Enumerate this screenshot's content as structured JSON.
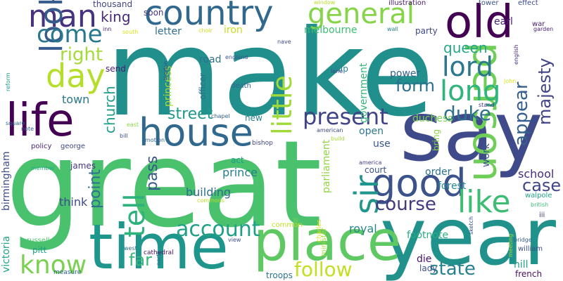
{
  "words": [
    {
      "text": "make",
      "color": "#21908d"
    },
    {
      "text": "great",
      "color": "#4ac16d"
    },
    {
      "text": "say",
      "color": "#3f4a8a"
    },
    {
      "text": "year",
      "color": "#21918c"
    },
    {
      "text": "time",
      "color": "#1f968b"
    },
    {
      "text": "place",
      "color": "#5ec962"
    },
    {
      "text": "house",
      "color": "#31688e"
    },
    {
      "text": "life",
      "color": "#440154"
    },
    {
      "text": "person",
      "color": "#6ece58"
    },
    {
      "text": "country",
      "color": "#31688e"
    },
    {
      "text": "old",
      "color": "#440154"
    },
    {
      "text": "good",
      "color": "#3b528b"
    },
    {
      "text": "man",
      "color": "#46327e"
    },
    {
      "text": "general",
      "color": "#86d549"
    },
    {
      "text": "day",
      "color": "#b5de2b"
    },
    {
      "text": "look",
      "color": "#365c8d"
    },
    {
      "text": "come",
      "color": "#2a788e"
    },
    {
      "text": "little",
      "color": "#a0da39"
    },
    {
      "text": "long",
      "color": "#2fb47c"
    },
    {
      "text": "lord",
      "color": "#2a788e"
    },
    {
      "text": "like",
      "color": "#3dbc74"
    },
    {
      "text": "sir",
      "color": "#1f968b"
    },
    {
      "text": "tell",
      "color": "#2db27d"
    },
    {
      "text": "account",
      "color": "#1fa187"
    },
    {
      "text": "know",
      "color": "#7ad151"
    },
    {
      "text": "present",
      "color": "#404387"
    },
    {
      "text": "course",
      "color": "#443a83"
    },
    {
      "text": "right",
      "color": "#a5db36"
    },
    {
      "text": "follow",
      "color": "#c2df23"
    },
    {
      "text": "state",
      "color": "#26828e"
    },
    {
      "text": "duke",
      "color": "#2c728e"
    },
    {
      "text": "appear",
      "color": "#355f8d"
    },
    {
      "text": "majesty",
      "color": "#414487"
    },
    {
      "text": "form",
      "color": "#2c728e"
    },
    {
      "text": "case",
      "color": "#404688"
    },
    {
      "text": "street",
      "color": "#1f988b"
    },
    {
      "text": "point",
      "color": "#2d718e"
    },
    {
      "text": "pass",
      "color": "#38588c"
    },
    {
      "text": "queen",
      "color": "#22a884"
    },
    {
      "text": "far",
      "color": "#35b779"
    },
    {
      "text": "church",
      "color": "#1f9e89"
    },
    {
      "text": "king",
      "color": "#482878"
    },
    {
      "text": "town",
      "color": "#2a788e"
    },
    {
      "text": "building",
      "color": "#2e6e8e"
    },
    {
      "text": "prince",
      "color": "#277f8e"
    },
    {
      "text": "school",
      "color": "#472d7b"
    },
    {
      "text": "think",
      "color": "#3e4c8a"
    },
    {
      "text": "royal",
      "color": "#25858e"
    },
    {
      "text": "princess",
      "color": "#addc30"
    },
    {
      "text": "iron",
      "color": "#c8e020"
    },
    {
      "text": "melbourne",
      "color": "#3dbc74"
    },
    {
      "text": "earl",
      "color": "#481f70"
    },
    {
      "text": "road",
      "color": "#2e6f8e"
    },
    {
      "text": "letter",
      "color": "#2e6e8e"
    },
    {
      "text": "forest",
      "color": "#23898e"
    },
    {
      "text": "hill",
      "color": "#1e9b8a"
    },
    {
      "text": "footnote",
      "color": "#29af7f"
    },
    {
      "text": "power",
      "color": "#33638d"
    },
    {
      "text": "government",
      "color": "#35b779"
    },
    {
      "text": "parliament",
      "color": "#90d743"
    },
    {
      "text": "duchess",
      "color": "#7ad151"
    },
    {
      "text": "open",
      "color": "#2a768e"
    },
    {
      "text": "use",
      "color": "#39568c"
    },
    {
      "text": "order",
      "color": "#2d718e"
    },
    {
      "text": "court",
      "color": "#3b518b"
    },
    {
      "text": "work",
      "color": "#3a548c"
    },
    {
      "text": "die",
      "color": "#471365"
    },
    {
      "text": "lady",
      "color": "#3b528b"
    },
    {
      "text": "french",
      "color": "#470e61"
    },
    {
      "text": "victoria",
      "color": "#20a486"
    },
    {
      "text": "birmingham",
      "color": "#3e4c8a"
    },
    {
      "text": "james",
      "color": "#453781"
    },
    {
      "text": "new",
      "color": "#27808e"
    },
    {
      "text": "act",
      "color": "#1e9c89"
    },
    {
      "text": "party",
      "color": "#3f4889"
    },
    {
      "text": "send",
      "color": "#481f70"
    },
    {
      "text": "soon",
      "color": "#453882"
    },
    {
      "text": "thousand",
      "color": "#404688"
    },
    {
      "text": "ship",
      "color": "#24878e"
    },
    {
      "text": "bring",
      "color": "#8bd646"
    },
    {
      "text": "troops",
      "color": "#2b758e"
    },
    {
      "text": "common",
      "color": "#bddf26"
    },
    {
      "text": "pitt",
      "color": "#1fa088"
    },
    {
      "text": "russell",
      "color": "#4ec36b"
    },
    {
      "text": "george",
      "color": "#3f4889"
    },
    {
      "text": "officer",
      "color": "#2d708e"
    },
    {
      "text": "death",
      "color": "#32658e"
    },
    {
      "text": "minister",
      "color": "#a8db34"
    },
    {
      "text": "charles",
      "color": "#dde318"
    },
    {
      "text": "william",
      "color": "#3d4e8a"
    },
    {
      "text": "illustration",
      "color": "#48186a"
    },
    {
      "text": "tower",
      "color": "#3c4f8a"
    },
    {
      "text": "window",
      "color": "#b8de29"
    },
    {
      "text": "wall",
      "color": "#26828e"
    },
    {
      "text": "war",
      "color": "#482173"
    },
    {
      "text": "garden",
      "color": "#482374"
    },
    {
      "text": "english",
      "color": "#46307e"
    },
    {
      "text": "john",
      "color": "#d2e21b"
    },
    {
      "text": "stand",
      "color": "#46327e"
    },
    {
      "text": "effect",
      "color": "#3e4989"
    },
    {
      "text": "walpole",
      "color": "#20a386"
    },
    {
      "text": "british",
      "color": "#3aba76"
    },
    {
      "text": "iii",
      "color": "#46327e"
    },
    {
      "text": "sketch",
      "color": "#39568c"
    },
    {
      "text": "meeting",
      "color": "#9bd93c"
    },
    {
      "text": "bridge",
      "color": "#34618d"
    },
    {
      "text": "cathedral",
      "color": "#471063"
    },
    {
      "text": "west",
      "color": "#2e6e8e"
    },
    {
      "text": "north",
      "color": "#31688e"
    },
    {
      "text": "view",
      "color": "#3b528b"
    },
    {
      "text": "commons",
      "color": "#bade28"
    },
    {
      "text": "measure",
      "color": "#31688e"
    },
    {
      "text": "motion",
      "color": "#32658e"
    },
    {
      "text": "bishop",
      "color": "#404588"
    },
    {
      "text": "american",
      "color": "#3e4989"
    },
    {
      "text": "america",
      "color": "#433e85"
    },
    {
      "text": "build",
      "color": "#aadc32"
    },
    {
      "text": "chapel",
      "color": "#33628d"
    },
    {
      "text": "east",
      "color": "#8bd646"
    },
    {
      "text": "bill",
      "color": "#3b528b"
    },
    {
      "text": "note",
      "color": "#375b8d"
    },
    {
      "text": "policy",
      "color": "#482576"
    },
    {
      "text": "square",
      "color": "#306a8e"
    },
    {
      "text": "member",
      "color": "#25ac82"
    },
    {
      "text": "reform",
      "color": "#1f988b"
    },
    {
      "text": "london",
      "color": "#3e4a89"
    },
    {
      "text": "england",
      "color": "#3b528b"
    },
    {
      "text": "choir",
      "color": "#d0e11c"
    },
    {
      "text": "nave",
      "color": "#3d4d8a"
    },
    {
      "text": "south",
      "color": "#d8e219"
    },
    {
      "text": "inn",
      "color": "#481f70"
    },
    {
      "text": "lane",
      "color": "#3e4989"
    }
  ]
}
